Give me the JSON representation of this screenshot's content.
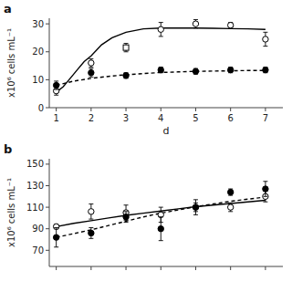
{
  "chart_data": [
    {
      "type": "line",
      "title": "a",
      "xlabel": "d",
      "ylabel": "x10⁶ cells mL⁻¹",
      "xlim": [
        0.8,
        7.5
      ],
      "xticks": [
        1,
        2,
        3,
        4,
        5,
        6,
        7
      ],
      "ylim": [
        0,
        32
      ],
      "yticks": [
        0,
        10,
        20,
        30
      ],
      "grid": false,
      "series": [
        {
          "type": "line",
          "line_style": "solid",
          "color": "#000000",
          "x": [
            1.0,
            1.2,
            1.4,
            1.6,
            1.8,
            2.0,
            2.3,
            2.6,
            3.0,
            3.5,
            4.0,
            4.5,
            5.0,
            5.5,
            6.0,
            6.5,
            7.0
          ],
          "values": [
            5.5,
            7.5,
            10.5,
            13.5,
            16.5,
            18.5,
            22.5,
            25.0,
            27.0,
            28.2,
            28.5,
            28.5,
            28.5,
            28.4,
            28.3,
            28.2,
            28.0
          ]
        },
        {
          "type": "line",
          "line_style": "dashed",
          "color": "#000000",
          "x": [
            1.0,
            1.5,
            2.0,
            2.5,
            3.0,
            3.5,
            4.0,
            4.5,
            5.0,
            5.5,
            6.0,
            6.5,
            7.0
          ],
          "values": [
            8.0,
            9.5,
            10.5,
            11.2,
            11.8,
            12.2,
            12.6,
            12.8,
            13.0,
            13.1,
            13.2,
            13.3,
            13.3
          ]
        },
        {
          "type": "scatter",
          "marker": "open-circle",
          "color": "#000000",
          "x": [
            1,
            2,
            4,
            5,
            6,
            7
          ],
          "values": [
            6.0,
            16.0,
            28.0,
            30.0,
            29.5,
            24.5
          ],
          "errors": [
            1.5,
            1.5,
            2.5,
            1.5,
            1.0,
            2.5
          ]
        },
        {
          "type": "scatter",
          "marker": "open-square",
          "color": "#000000",
          "x": [
            3
          ],
          "values": [
            21.5
          ],
          "errors": [
            1.5
          ]
        },
        {
          "type": "scatter",
          "marker": "filled-circle",
          "color": "#000000",
          "x": [
            1,
            2,
            3,
            4,
            5,
            6,
            7
          ],
          "values": [
            8.0,
            12.5,
            11.5,
            13.5,
            13.0,
            13.5,
            13.5
          ],
          "errors": [
            1.5,
            1.5,
            1.0,
            1.0,
            1.0,
            1.0,
            1.0
          ]
        }
      ]
    },
    {
      "type": "line",
      "title": "b",
      "ylabel": "x10⁶ cells mL⁻¹",
      "xlim": [
        0.8,
        7.5
      ],
      "xticks": [
        1,
        2,
        3,
        4,
        5,
        6,
        7
      ],
      "ylim": [
        55,
        155
      ],
      "yticks": [
        70,
        90,
        110,
        130,
        150
      ],
      "grid": false,
      "tick_labels": "y",
      "series": [
        {
          "type": "line",
          "line_style": "solid",
          "color": "#000000",
          "x": [
            1.0,
            1.5,
            2.0,
            2.5,
            3.0,
            3.5,
            4.0,
            4.5,
            5.0,
            5.5,
            6.0,
            6.5,
            7.0
          ],
          "values": [
            92.0,
            95.0,
            97.5,
            100.0,
            102.5,
            104.5,
            106.5,
            108.5,
            110.5,
            112.0,
            113.5,
            115.0,
            116.5
          ]
        },
        {
          "type": "line",
          "line_style": "dashed",
          "color": "#000000",
          "x": [
            1.0,
            1.5,
            2.0,
            2.5,
            3.0,
            3.5,
            4.0,
            4.5,
            5.0,
            5.5,
            6.0,
            6.5,
            7.0
          ],
          "values": [
            82.0,
            85.5,
            89.0,
            93.0,
            97.0,
            101.0,
            104.5,
            107.5,
            110.5,
            113.0,
            115.5,
            117.5,
            119.5
          ]
        },
        {
          "type": "scatter",
          "marker": "open-circle",
          "color": "#000000",
          "x": [
            1,
            2,
            3,
            4,
            5,
            6,
            7
          ],
          "values": [
            92.0,
            106.0,
            105.0,
            103.0,
            110.0,
            110.0,
            120.0
          ],
          "errors": [
            2.0,
            7.0,
            7.0,
            7.0,
            7.0,
            4.0,
            5.0
          ]
        },
        {
          "type": "scatter",
          "marker": "filled-circle",
          "color": "#000000",
          "x": [
            1,
            2,
            3,
            4,
            5,
            6,
            7
          ],
          "values": [
            82.0,
            86.0,
            101.0,
            90.0,
            110.0,
            124.0,
            127.0
          ],
          "errors": [
            9.0,
            5.0,
            5.0,
            11.0,
            4.0,
            3.0,
            7.0
          ]
        }
      ]
    }
  ]
}
